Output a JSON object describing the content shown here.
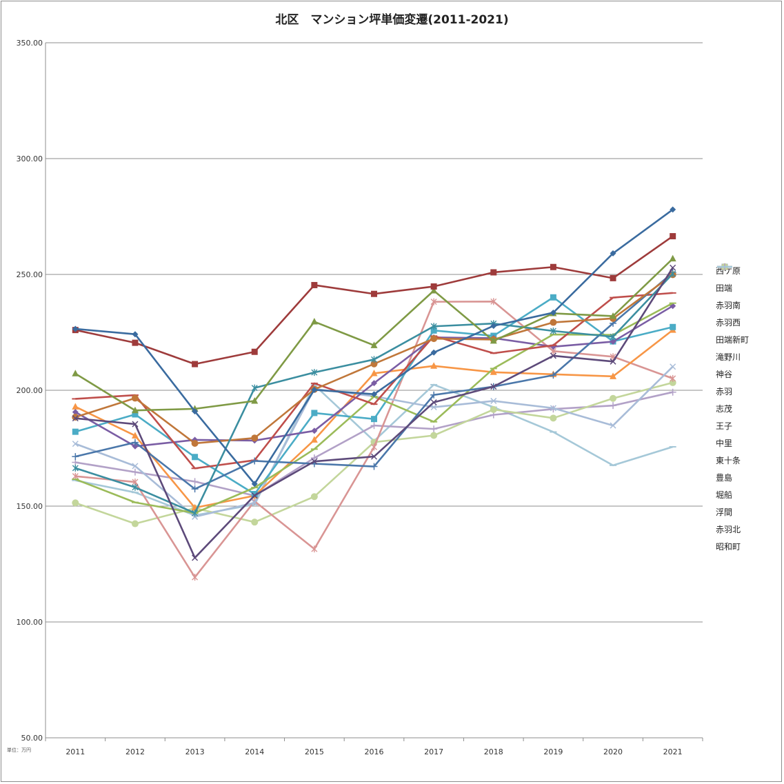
{
  "chart_data": {
    "type": "line",
    "title": "北区　マンション坪単価変遷(2011-2021)",
    "unit_note": "単位：万円",
    "categories": [
      "2011",
      "2012",
      "2013",
      "2014",
      "2015",
      "2016",
      "2017",
      "2018",
      "2019",
      "2020",
      "2021"
    ],
    "ylim": [
      50,
      350
    ],
    "yticks": [
      "50.00",
      "100.00",
      "150.00",
      "200.00",
      "250.00",
      "300.00",
      "350.00"
    ],
    "grid": true,
    "legend_position": "right",
    "series": [
      {
        "name": "西ケ原",
        "color": "#3a6b9f",
        "marker": "diamond",
        "values": [
          226.5,
          224.2,
          190.9,
          159.6,
          200.2,
          198.3,
          216.3,
          227.8,
          233.5,
          259.1,
          278.0
        ]
      },
      {
        "name": "田端",
        "color": "#9e3b3b",
        "marker": "square",
        "values": [
          226.0,
          220.5,
          211.3,
          216.6,
          245.4,
          241.6,
          244.8,
          250.9,
          253.2,
          248.4,
          266.5
        ]
      },
      {
        "name": "赤羽南",
        "color": "#7f9a45",
        "marker": "triangle",
        "values": [
          207.2,
          191.3,
          192.0,
          195.4,
          229.6,
          219.4,
          243.0,
          221.3,
          233.2,
          232.0,
          256.8
        ]
      },
      {
        "name": "赤羽西",
        "color": "#5d4a7a",
        "marker": "x",
        "values": [
          187.9,
          185.4,
          127.7,
          154.6,
          169.3,
          171.4,
          194.8,
          201.6,
          214.9,
          212.4,
          252.9
        ]
      },
      {
        "name": "田端新町",
        "color": "#3b8ea0",
        "marker": "star",
        "values": [
          166.4,
          158.1,
          147.0,
          201.0,
          207.7,
          213.3,
          227.6,
          228.8,
          225.6,
          223.1,
          250.3
        ]
      },
      {
        "name": "滝野川",
        "color": "#c0773a",
        "marker": "circle",
        "values": [
          188.4,
          196.6,
          177.1,
          179.4,
          200.4,
          211.4,
          222.3,
          221.9,
          229.3,
          231.0,
          249.9
        ]
      },
      {
        "name": "神谷",
        "color": "#4a77aa",
        "marker": "plus",
        "values": [
          171.4,
          177.5,
          157.4,
          169.5,
          168.3,
          167.1,
          198.0,
          201.6,
          206.5,
          228.9,
          250.8
        ]
      },
      {
        "name": "赤羽",
        "color": "#bf4e4b",
        "marker": "dash",
        "values": [
          196.3,
          197.9,
          166.3,
          169.8,
          203.0,
          194.0,
          223.4,
          216.0,
          219.4,
          240.0,
          242.0
        ]
      },
      {
        "name": "志茂",
        "color": "#9bbb59",
        "marker": "dash",
        "values": [
          161.6,
          151.6,
          147.0,
          158.0,
          174.6,
          197.3,
          186.4,
          209.4,
          224.1,
          223.9,
          237.6
        ]
      },
      {
        "name": "王子",
        "color": "#7a5da4",
        "marker": "diamond",
        "values": [
          190.6,
          175.8,
          178.6,
          178.3,
          182.5,
          203.1,
          222.8,
          222.5,
          218.8,
          221.0,
          236.4
        ]
      },
      {
        "name": "中里",
        "color": "#4bacc6",
        "marker": "square",
        "values": [
          182.1,
          189.6,
          171.2,
          155.2,
          190.2,
          187.6,
          225.8,
          223.5,
          240.1,
          221.1,
          227.3
        ]
      },
      {
        "name": "東十条",
        "color": "#f79646",
        "marker": "triangle",
        "values": [
          192.9,
          180.4,
          149.3,
          154.5,
          178.6,
          207.3,
          210.5,
          207.8,
          206.9,
          206.0,
          226.0
        ]
      },
      {
        "name": "豊島",
        "color": "#a8bcd8",
        "marker": "x",
        "values": [
          176.9,
          167.3,
          145.4,
          151.5,
          200.6,
          197.4,
          192.7,
          195.4,
          192.3,
          184.8,
          210.2
        ]
      },
      {
        "name": "堀船",
        "color": "#d99594",
        "marker": "star",
        "values": [
          162.9,
          160.4,
          119.3,
          152.1,
          131.5,
          175.5,
          238.2,
          238.3,
          216.9,
          214.5,
          205.1
        ]
      },
      {
        "name": "浮間",
        "color": "#c3d69b",
        "marker": "circle",
        "values": [
          151.4,
          142.4,
          149.1,
          143.1,
          154.1,
          177.6,
          180.5,
          191.7,
          188.0,
          196.5,
          203.3
        ]
      },
      {
        "name": "赤羽北",
        "color": "#b2a1c7",
        "marker": "plus",
        "values": [
          168.9,
          164.7,
          160.6,
          154.5,
          170.8,
          184.8,
          183.3,
          189.4,
          191.9,
          193.4,
          199.2
        ]
      },
      {
        "name": "昭和町",
        "color": "#a5c8d8",
        "marker": "dash",
        "values": [
          161.1,
          155.9,
          146.0,
          150.7,
          202.3,
          178.1,
          202.4,
          192.7,
          182.0,
          167.6,
          175.6
        ]
      }
    ]
  }
}
